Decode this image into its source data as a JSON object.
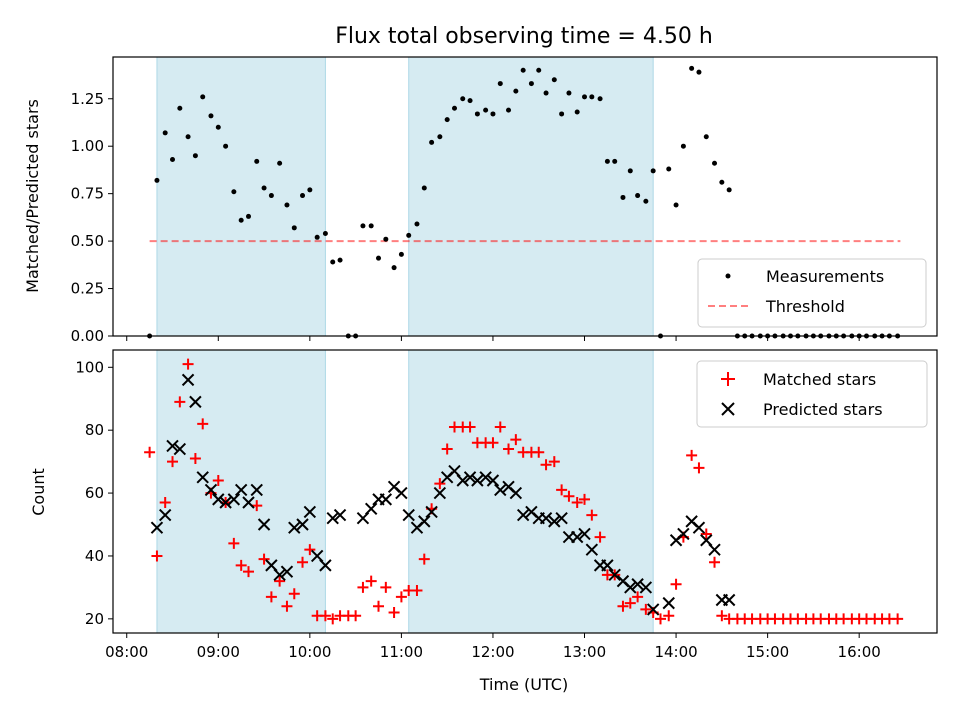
{
  "title": "Flux total observing time = 4.50 h",
  "colors": {
    "shade": "#add8e6",
    "measurements": "#000000",
    "threshold": "#ff0000",
    "matched": "#ff0000",
    "predicted": "#000000"
  },
  "chart_data": [
    {
      "type": "scatter",
      "name": "ratio",
      "ylabel": "Matched/Predicted stars",
      "xlim": [
        7.85,
        16.85
      ],
      "ylim": [
        0,
        1.47
      ],
      "yticks": [
        0.0,
        0.25,
        0.5,
        0.75,
        1.0,
        1.25
      ],
      "ytick_labels": [
        "0.00",
        "0.25",
        "0.50",
        "0.75",
        "1.00",
        "1.25"
      ],
      "shaded_spans": [
        [
          8.33,
          10.17
        ],
        [
          11.08,
          13.75
        ]
      ],
      "threshold": {
        "label": "Threshold",
        "value": 0.5,
        "x": [
          8.25,
          16.45
        ]
      },
      "legend": {
        "position": "lower-right",
        "entries": [
          "Measurements",
          "Threshold"
        ]
      },
      "series": [
        {
          "name": "Measurements",
          "x": [
            8.25,
            8.33,
            8.42,
            8.5,
            8.58,
            8.67,
            8.75,
            8.83,
            8.92,
            9.0,
            9.08,
            9.17,
            9.25,
            9.33,
            9.42,
            9.5,
            9.58,
            9.67,
            9.75,
            9.83,
            9.92,
            10.0,
            10.08,
            10.17,
            10.25,
            10.33,
            10.42,
            10.5,
            10.58,
            10.67,
            10.75,
            10.83,
            10.92,
            11.0,
            11.08,
            11.17,
            11.25,
            11.33,
            11.42,
            11.5,
            11.58,
            11.67,
            11.75,
            11.83,
            11.92,
            12.0,
            12.08,
            12.17,
            12.25,
            12.33,
            12.42,
            12.5,
            12.58,
            12.67,
            12.75,
            12.83,
            12.92,
            13.0,
            13.08,
            13.17,
            13.25,
            13.33,
            13.42,
            13.5,
            13.58,
            13.67,
            13.75,
            13.83,
            13.92,
            14.0,
            14.08,
            14.17,
            14.25,
            14.33,
            14.42,
            14.5,
            14.58,
            14.67,
            14.75,
            14.83,
            14.92,
            15.0,
            15.08,
            15.17,
            15.25,
            15.33,
            15.42,
            15.5,
            15.58,
            15.67,
            15.75,
            15.83,
            15.92,
            16.0,
            16.08,
            16.17,
            16.25,
            16.33,
            16.42
          ],
          "y": [
            0.0,
            0.82,
            1.07,
            0.93,
            1.2,
            1.05,
            0.95,
            1.26,
            1.16,
            1.1,
            1.0,
            0.76,
            0.61,
            0.63,
            0.92,
            0.78,
            0.74,
            0.91,
            0.69,
            0.57,
            0.74,
            0.77,
            0.52,
            0.54,
            0.39,
            0.4,
            0.0,
            0.0,
            0.58,
            0.58,
            0.41,
            0.51,
            0.36,
            0.43,
            0.53,
            0.59,
            0.78,
            1.02,
            1.05,
            1.14,
            1.2,
            1.25,
            1.24,
            1.17,
            1.19,
            1.17,
            1.33,
            1.19,
            1.29,
            1.4,
            1.33,
            1.4,
            1.28,
            1.35,
            1.17,
            1.28,
            1.18,
            1.26,
            1.26,
            1.25,
            0.92,
            0.92,
            0.73,
            0.87,
            0.74,
            0.71,
            0.87,
            0.0,
            0.88,
            0.69,
            1.0,
            1.41,
            1.39,
            1.05,
            0.91,
            0.81,
            0.77,
            0.0,
            0.0,
            0.0,
            0.0,
            0.0,
            0.0,
            0.0,
            0.0,
            0.0,
            0.0,
            0.0,
            0.0,
            0.0,
            0.0,
            0.0,
            0.0,
            0.0,
            0.0,
            0.0,
            0.0,
            0.0,
            0.0
          ]
        }
      ]
    },
    {
      "type": "scatter",
      "name": "counts",
      "xlabel": "Time (UTC)",
      "ylabel": "Count",
      "xlim": [
        7.85,
        16.85
      ],
      "ylim": [
        15.5,
        105.5
      ],
      "yticks": [
        20,
        40,
        60,
        80,
        100
      ],
      "ytick_labels": [
        "20",
        "40",
        "60",
        "80",
        "100"
      ],
      "xticks": [
        8,
        9,
        10,
        11,
        12,
        13,
        14,
        15,
        16
      ],
      "xtick_labels": [
        "08:00",
        "09:00",
        "10:00",
        "11:00",
        "12:00",
        "13:00",
        "14:00",
        "15:00",
        "16:00"
      ],
      "shaded_spans": [
        [
          8.33,
          10.17
        ],
        [
          11.08,
          13.75
        ]
      ],
      "legend": {
        "position": "upper-right",
        "entries": [
          "Matched stars",
          "Predicted stars"
        ]
      },
      "series": [
        {
          "name": "Matched stars",
          "x": [
            8.25,
            8.33,
            8.42,
            8.5,
            8.58,
            8.67,
            8.75,
            8.83,
            8.92,
            9.0,
            9.08,
            9.17,
            9.25,
            9.33,
            9.42,
            9.5,
            9.58,
            9.67,
            9.75,
            9.83,
            9.92,
            10.0,
            10.08,
            10.17,
            10.25,
            10.33,
            10.42,
            10.5,
            10.58,
            10.67,
            10.75,
            10.83,
            10.92,
            11.0,
            11.08,
            11.17,
            11.25,
            11.33,
            11.42,
            11.5,
            11.58,
            11.67,
            11.75,
            11.83,
            11.92,
            12.0,
            12.08,
            12.17,
            12.25,
            12.33,
            12.42,
            12.5,
            12.58,
            12.67,
            12.75,
            12.83,
            12.92,
            13.0,
            13.08,
            13.17,
            13.25,
            13.33,
            13.42,
            13.5,
            13.58,
            13.67,
            13.75,
            13.83,
            13.92,
            14.0,
            14.08,
            14.17,
            14.25,
            14.33,
            14.42,
            14.5,
            14.58,
            14.67,
            14.75,
            14.83,
            14.92,
            15.0,
            15.08,
            15.17,
            15.25,
            15.33,
            15.42,
            15.5,
            15.58,
            15.67,
            15.75,
            15.83,
            15.92,
            16.0,
            16.08,
            16.17,
            16.25,
            16.33,
            16.42
          ],
          "y": [
            73,
            40,
            57,
            70,
            89,
            101,
            71,
            82,
            60,
            64,
            57,
            44,
            37,
            35,
            56,
            39,
            27,
            32,
            24,
            28,
            38,
            42,
            21,
            21,
            20,
            21,
            21,
            21,
            30,
            32,
            24,
            30,
            22,
            27,
            29,
            29,
            39,
            55,
            63,
            74,
            81,
            81,
            81,
            76,
            76,
            76,
            81,
            74,
            77,
            73,
            73,
            73,
            69,
            70,
            61,
            59,
            57,
            58,
            53,
            46,
            34,
            34,
            24,
            25,
            27,
            23,
            22,
            20,
            21,
            31,
            46,
            72,
            68,
            47,
            38,
            21,
            20,
            20,
            20,
            20,
            20,
            20,
            20,
            20,
            20,
            20,
            20,
            20,
            20,
            20,
            20,
            20,
            20,
            20,
            20,
            20,
            20,
            20,
            20
          ]
        },
        {
          "name": "Predicted stars",
          "x": [
            8.33,
            8.42,
            8.5,
            8.58,
            8.67,
            8.75,
            8.83,
            8.92,
            9.0,
            9.08,
            9.17,
            9.25,
            9.33,
            9.42,
            9.5,
            9.58,
            9.67,
            9.75,
            9.83,
            9.92,
            10.0,
            10.08,
            10.17,
            10.25,
            10.33,
            10.58,
            10.67,
            10.75,
            10.83,
            10.92,
            11.0,
            11.08,
            11.17,
            11.25,
            11.33,
            11.42,
            11.5,
            11.58,
            11.67,
            11.75,
            11.83,
            11.92,
            12.0,
            12.08,
            12.17,
            12.25,
            12.33,
            12.42,
            12.5,
            12.58,
            12.67,
            12.75,
            12.83,
            12.92,
            13.0,
            13.08,
            13.17,
            13.25,
            13.33,
            13.42,
            13.5,
            13.58,
            13.67,
            13.75,
            13.92,
            14.0,
            14.08,
            14.17,
            14.25,
            14.33,
            14.42,
            14.5,
            14.58
          ],
          "y": [
            49,
            53,
            75,
            74,
            96,
            89,
            65,
            61,
            58,
            57,
            58,
            61,
            57,
            61,
            50,
            37,
            34,
            35,
            49,
            50,
            54,
            40,
            37,
            52,
            53,
            52,
            55,
            58,
            58,
            62,
            60,
            53,
            49,
            51,
            54,
            60,
            65,
            67,
            64,
            65,
            64,
            65,
            64,
            61,
            62,
            60,
            53,
            54,
            52,
            52,
            51,
            52,
            46,
            46,
            47,
            42,
            37,
            37,
            34,
            32,
            30,
            31,
            30,
            23,
            25,
            45,
            47,
            51,
            49,
            45,
            42,
            26,
            26
          ]
        }
      ]
    }
  ]
}
